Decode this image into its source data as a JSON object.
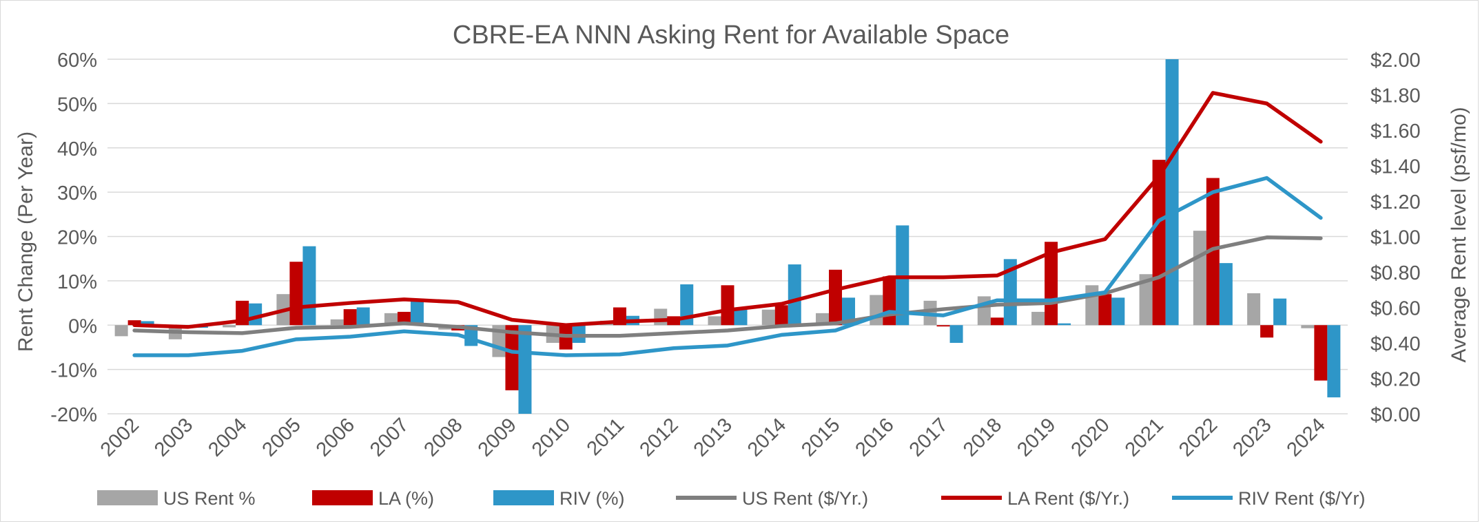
{
  "chart_data": {
    "type": "bar",
    "title": "CBRE-EA NNN Asking Rent for Available Space",
    "ylabel": "Rent Change (Per Year)",
    "y2label": "Average Rent level (psf/mo)",
    "ylim": [
      -0.2,
      0.6
    ],
    "y2lim": [
      0.0,
      2.0
    ],
    "y_ticks": [
      "-20%",
      "-10%",
      "0%",
      "10%",
      "20%",
      "30%",
      "40%",
      "50%",
      "60%"
    ],
    "y2_ticks": [
      "$0.00",
      "$0.20",
      "$0.40",
      "$0.60",
      "$0.80",
      "$1.00",
      "$1.20",
      "$1.40",
      "$1.60",
      "$1.80",
      "$2.00"
    ],
    "grid": true,
    "legend": "bottom",
    "categories": [
      "2002",
      "2003",
      "2004",
      "2005",
      "2006",
      "2007",
      "2008",
      "2009",
      "2010",
      "2011",
      "2012",
      "2013",
      "2014",
      "2015",
      "2016",
      "2017",
      "2018",
      "2019",
      "2020",
      "2021",
      "2022",
      "2023",
      "2024"
    ],
    "bar_series": [
      {
        "name": "US Rent %",
        "color": "#a6a6a6",
        "values": [
          -0.025,
          -0.032,
          -0.005,
          0.07,
          0.013,
          0.027,
          -0.01,
          -0.072,
          -0.04,
          0.01,
          0.037,
          0.02,
          0.035,
          0.027,
          0.068,
          0.055,
          0.065,
          0.03,
          0.09,
          0.115,
          0.213,
          0.072,
          -0.007
        ]
      },
      {
        "name": "LA (%)",
        "color": "#c00000",
        "values": [
          0.011,
          -0.005,
          0.055,
          0.143,
          0.036,
          0.03,
          -0.012,
          -0.147,
          -0.055,
          0.04,
          0.02,
          0.09,
          0.045,
          0.125,
          0.11,
          -0.003,
          0.017,
          0.188,
          0.07,
          0.373,
          0.332,
          -0.028,
          -0.125
        ]
      },
      {
        "name": "RIV (%)",
        "color": "#2e96c8",
        "values": [
          0.009,
          -0.006,
          0.049,
          0.178,
          0.04,
          0.06,
          -0.047,
          -0.2,
          -0.04,
          0.021,
          0.092,
          0.035,
          0.137,
          0.062,
          0.225,
          -0.04,
          0.149,
          0.004,
          0.062,
          0.6,
          0.14,
          0.06,
          -0.163
        ]
      }
    ],
    "line_series": [
      {
        "name": "US Rent ($/Yr.)",
        "color": "#7f7f7f",
        "values": [
          0.47,
          0.46,
          0.455,
          0.485,
          0.49,
          0.51,
          0.49,
          0.46,
          0.44,
          0.44,
          0.455,
          0.47,
          0.495,
          0.51,
          0.56,
          0.59,
          0.615,
          0.625,
          0.68,
          0.77,
          0.93,
          0.995,
          0.99
        ]
      },
      {
        "name": "LA Rent ($/Yr.)",
        "color": "#c00000",
        "values": [
          0.5,
          0.49,
          0.525,
          0.6,
          0.625,
          0.645,
          0.63,
          0.53,
          0.5,
          0.52,
          0.53,
          0.585,
          0.62,
          0.7,
          0.77,
          0.77,
          0.78,
          0.91,
          0.985,
          1.34,
          1.81,
          1.75,
          1.535
        ]
      },
      {
        "name": "RIV Rent ($/Yr)",
        "color": "#2e96c8",
        "values": [
          0.33,
          0.33,
          0.355,
          0.42,
          0.435,
          0.465,
          0.445,
          0.35,
          0.33,
          0.335,
          0.37,
          0.385,
          0.445,
          0.47,
          0.575,
          0.555,
          0.64,
          0.64,
          0.685,
          1.09,
          1.25,
          1.33,
          1.105
        ]
      }
    ]
  }
}
